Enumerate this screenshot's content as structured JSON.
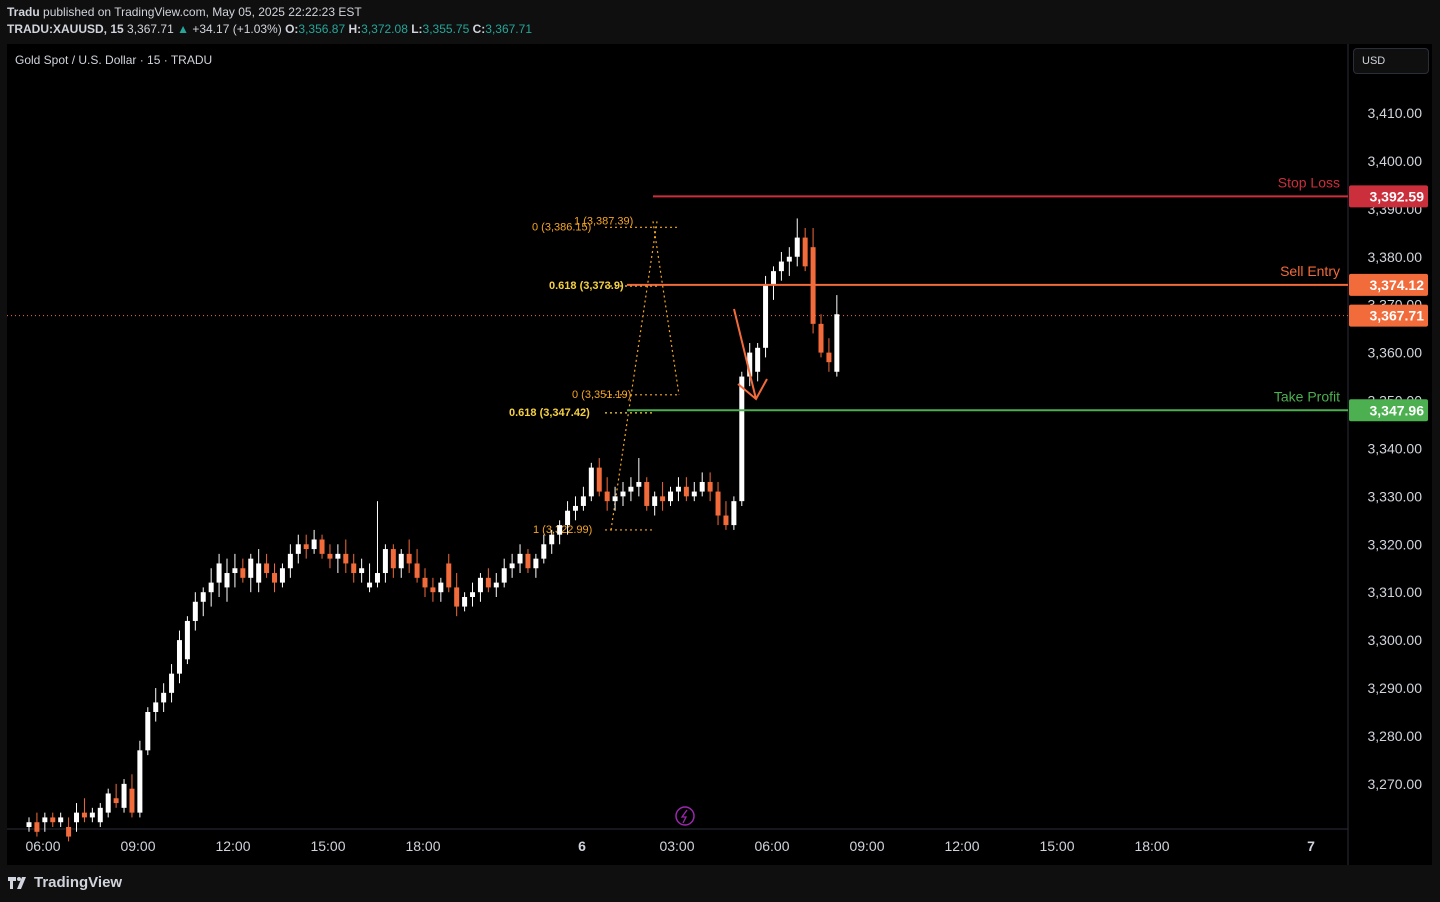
{
  "header": {
    "publisher": "Tradu",
    "published_text": "published on TradingView.com, May 05, 2025 22:22:23 EST",
    "symbol": "TRADU:XAUUSD, 15",
    "last_price": "3,367.71",
    "change": "+34.17 (+1.03%)",
    "open": "3,356.87",
    "high": "3,372.08",
    "low": "3,355.75",
    "close": "3,367.71"
  },
  "chart_title": "Gold Spot / U.S. Dollar · 15 · TRADU",
  "currency_button": "USD",
  "footer": {
    "brand": "TradingView"
  },
  "colors": {
    "up": "#ffffff",
    "down": "#f26b3a",
    "stop_loss": "#cc2f3c",
    "sell_entry": "#f26b3a",
    "take_profit": "#4caf50",
    "fib_orange": "#f5a623",
    "fib_yellow": "#f5d142"
  },
  "chart_data": {
    "type": "candlestick",
    "title": "Gold Spot / U.S. Dollar · 15 · TRADU",
    "ylim": [
      3262,
      3422
    ],
    "y_ticks": [
      3270,
      3280,
      3290,
      3300,
      3310,
      3320,
      3330,
      3340,
      3350,
      3360,
      3370,
      3380,
      3390,
      3400,
      3410
    ],
    "y_tick_labels": [
      "3,270.00",
      "3,280.00",
      "3,290.00",
      "3,300.00",
      "3,310.00",
      "3,320.00",
      "3,330.00",
      "3,340.00",
      "3,350.00",
      "3,360.00",
      "3,370.00",
      "3,380.00",
      "3,390.00",
      "3,400.00",
      "3,410.00"
    ],
    "x_ticks": [
      "06:00",
      "09:00",
      "12:00",
      "15:00",
      "18:00",
      "6",
      "03:00",
      "06:00",
      "09:00",
      "12:00",
      "15:00",
      "18:00",
      "7"
    ],
    "levels": [
      {
        "name": "Stop Loss",
        "price": 3392.59,
        "label": "3,392.59"
      },
      {
        "name": "Sell Entry",
        "price": 3374.12,
        "label": "3,374.12"
      },
      {
        "name": "Take Profit",
        "price": 3347.96,
        "label": "3,347.96"
      }
    ],
    "last_price": {
      "price": 3367.71,
      "label": "3,367.71"
    },
    "fib_labels": [
      {
        "text": "0 (3,386.15)",
        "price": 3386.15
      },
      {
        "text": "1 (3,387.39)",
        "price": 3387.39
      },
      {
        "text": "0.618 (3,373.9)",
        "price": 3373.9
      },
      {
        "text": "0 (3,351.19)",
        "price": 3351.19
      },
      {
        "text": "0.618 (3,347.42)",
        "price": 3347.42
      },
      {
        "text": "1 (3,322.99)",
        "price": 3322.99
      }
    ],
    "candles": [
      [
        3261,
        3263,
        3260,
        3262
      ],
      [
        3262,
        3264,
        3259,
        3260
      ],
      [
        3262,
        3264,
        3260,
        3263
      ],
      [
        3263,
        3264,
        3261,
        3262
      ],
      [
        3262,
        3264,
        3261,
        3263
      ],
      [
        3261,
        3263,
        3258,
        3259
      ],
      [
        3262,
        3266,
        3260,
        3264
      ],
      [
        3264,
        3267,
        3262,
        3263
      ],
      [
        3263,
        3265,
        3262,
        3264
      ],
      [
        3262,
        3266,
        3261,
        3265
      ],
      [
        3264,
        3269,
        3263,
        3268
      ],
      [
        3267,
        3270,
        3265,
        3266
      ],
      [
        3265,
        3271,
        3264,
        3270
      ],
      [
        3269,
        3272,
        3263,
        3264
      ],
      [
        3264,
        3279,
        3263,
        3277
      ],
      [
        3277,
        3286,
        3276,
        3285
      ],
      [
        3285,
        3290,
        3283,
        3287
      ],
      [
        3287,
        3291,
        3285,
        3289
      ],
      [
        3289,
        3295,
        3287,
        3293
      ],
      [
        3293,
        3302,
        3291,
        3300
      ],
      [
        3296,
        3305,
        3295,
        3304
      ],
      [
        3304,
        3310,
        3302,
        3308
      ],
      [
        3308,
        3311,
        3305,
        3310
      ],
      [
        3310,
        3315,
        3307,
        3312
      ],
      [
        3312,
        3318,
        3309,
        3316
      ],
      [
        3311,
        3317,
        3308,
        3314
      ],
      [
        3314,
        3318,
        3311,
        3315
      ],
      [
        3315,
        3317,
        3312,
        3313
      ],
      [
        3313,
        3318,
        3310,
        3317
      ],
      [
        3312,
        3319,
        3310,
        3316
      ],
      [
        3316,
        3318,
        3313,
        3314
      ],
      [
        3314,
        3316,
        3310,
        3312
      ],
      [
        3312,
        3316,
        3311,
        3315
      ],
      [
        3315,
        3320,
        3313,
        3318
      ],
      [
        3318,
        3322,
        3316,
        3320
      ],
      [
        3320,
        3322,
        3317,
        3319
      ],
      [
        3319,
        3323,
        3318,
        3321
      ],
      [
        3321,
        3322,
        3317,
        3318
      ],
      [
        3318,
        3320,
        3315,
        3317
      ],
      [
        3317,
        3320,
        3314,
        3318
      ],
      [
        3318,
        3321,
        3314,
        3316
      ],
      [
        3316,
        3318,
        3312,
        3314
      ],
      [
        3314,
        3317,
        3312,
        3315
      ],
      [
        3311,
        3316,
        3310,
        3312
      ],
      [
        3312,
        3329,
        3311,
        3314
      ],
      [
        3314,
        3320,
        3312,
        3319
      ],
      [
        3319,
        3320,
        3313,
        3315
      ],
      [
        3315,
        3319,
        3313,
        3318
      ],
      [
        3318,
        3321,
        3314,
        3316
      ],
      [
        3316,
        3319,
        3312,
        3313
      ],
      [
        3313,
        3315,
        3309,
        3311
      ],
      [
        3311,
        3313,
        3308,
        3310
      ],
      [
        3310,
        3313,
        3308,
        3312
      ],
      [
        3316,
        3318,
        3310,
        3311
      ],
      [
        3311,
        3314,
        3305,
        3307
      ],
      [
        3307,
        3310,
        3306,
        3309
      ],
      [
        3309,
        3312,
        3307,
        3310
      ],
      [
        3310,
        3314,
        3308,
        3313
      ],
      [
        3313,
        3315,
        3310,
        3311
      ],
      [
        3311,
        3314,
        3309,
        3312
      ],
      [
        3312,
        3317,
        3311,
        3315
      ],
      [
        3315,
        3318,
        3313,
        3316
      ],
      [
        3316,
        3320,
        3314,
        3318
      ],
      [
        3318,
        3319,
        3314,
        3315
      ],
      [
        3315,
        3318,
        3313,
        3317
      ],
      [
        3317,
        3322,
        3316,
        3320
      ],
      [
        3320,
        3323,
        3318,
        3322
      ],
      [
        3322,
        3325,
        3320,
        3324
      ],
      [
        3324,
        3329,
        3322,
        3327
      ],
      [
        3327,
        3330,
        3325,
        3328
      ],
      [
        3328,
        3332,
        3327,
        3330
      ],
      [
        3330,
        3337,
        3329,
        3336
      ],
      [
        3336,
        3338,
        3330,
        3331
      ],
      [
        3331,
        3334,
        3327,
        3329
      ],
      [
        3329,
        3332,
        3327,
        3330
      ],
      [
        3330,
        3333,
        3328,
        3331
      ],
      [
        3331,
        3334,
        3329,
        3332
      ],
      [
        3332,
        3338,
        3330,
        3333
      ],
      [
        3333,
        3334,
        3327,
        3328
      ],
      [
        3328,
        3331,
        3326,
        3330
      ],
      [
        3330,
        3333,
        3327,
        3329
      ],
      [
        3329,
        3332,
        3328,
        3331
      ],
      [
        3331,
        3334,
        3329,
        3332
      ],
      [
        3332,
        3334,
        3329,
        3330
      ],
      [
        3330,
        3333,
        3329,
        3331
      ],
      [
        3331,
        3335,
        3330,
        3333
      ],
      [
        3333,
        3335,
        3329,
        3331
      ],
      [
        3331,
        3333,
        3324,
        3326
      ],
      [
        3326,
        3329,
        3323,
        3324
      ],
      [
        3324,
        3330,
        3323,
        3329
      ],
      [
        3329,
        3356,
        3328,
        3355
      ],
      [
        3355,
        3362,
        3353,
        3360
      ],
      [
        3356,
        3362,
        3354,
        3361
      ],
      [
        3361,
        3376,
        3359,
        3374
      ],
      [
        3374,
        3378,
        3371,
        3377
      ],
      [
        3377,
        3381,
        3375,
        3379
      ],
      [
        3379,
        3382,
        3376,
        3380
      ],
      [
        3380,
        3388,
        3378,
        3384
      ],
      [
        3384,
        3386,
        3377,
        3378
      ],
      [
        3382,
        3386,
        3364,
        3366
      ],
      [
        3366,
        3368,
        3359,
        3360
      ],
      [
        3360,
        3363,
        3356,
        3358
      ],
      [
        3356,
        3372,
        3355,
        3368
      ]
    ],
    "dotted_price_line": 3367.71
  }
}
